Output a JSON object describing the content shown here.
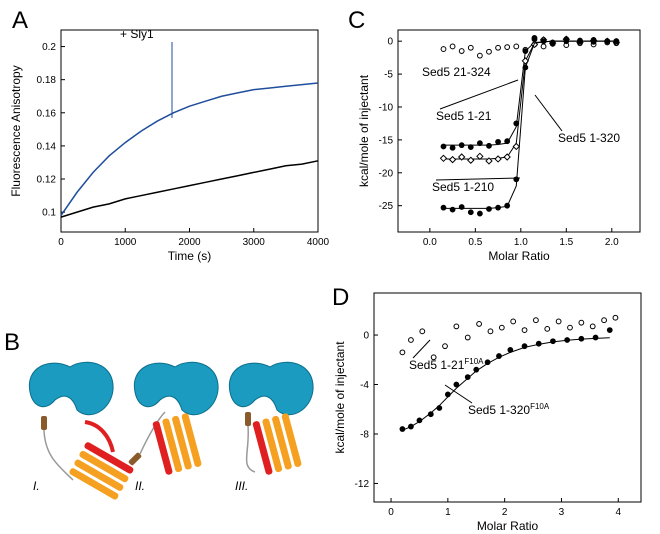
{
  "chart_data": [
    {
      "type": "line",
      "panel": "A",
      "xlabel": "Time (s)",
      "ylabel": "Fluorescence Anisotropy",
      "xlim": [
        0,
        4000
      ],
      "ylim": [
        0.088,
        0.21
      ],
      "xticks": [
        0,
        1000,
        2000,
        3000,
        4000
      ],
      "yticks": [
        0.1,
        0.12,
        0.14,
        0.16,
        0.18,
        0.2
      ],
      "x": [
        0,
        250,
        500,
        750,
        1000,
        1250,
        1500,
        1750,
        2000,
        2250,
        2500,
        2750,
        3000,
        3250,
        3500,
        3750,
        4000
      ],
      "series": [
        {
          "name": "+ Sly1",
          "color": "#1f4e9c",
          "values": [
            0.098,
            0.112,
            0.124,
            0.134,
            0.142,
            0.149,
            0.155,
            0.16,
            0.164,
            0.167,
            0.17,
            0.172,
            0.174,
            0.175,
            0.176,
            0.177,
            0.178
          ]
        },
        {
          "color": "#000000",
          "values": [
            0.097,
            0.1,
            0.103,
            0.105,
            0.108,
            0.11,
            0.112,
            0.114,
            0.116,
            0.118,
            0.12,
            0.122,
            0.124,
            0.126,
            0.128,
            0.129,
            0.131
          ]
        }
      ]
    },
    {
      "type": "scatter",
      "panel": "C",
      "xlabel": "Molar Ratio",
      "ylabel": "kcal/mole of injectant",
      "xlim": [
        -0.35,
        2.31
      ],
      "ylim": [
        -29,
        1.7
      ],
      "xticks": [
        {
          "value": 0,
          "label": "0.0"
        },
        0.5,
        {
          "value": 1,
          "label": "1.0"
        },
        1.5,
        {
          "value": 2,
          "label": "2.0"
        }
      ],
      "yticks": [
        0,
        -5,
        -10,
        -15,
        -20,
        -25
      ],
      "series": [
        {
          "name": "Sed5 21-324",
          "marker": "open-circle",
          "x": [
            0.15,
            0.25,
            0.35,
            0.45,
            0.55,
            0.65,
            0.75,
            0.85,
            0.95,
            1.05,
            1.15,
            1.25,
            1.35,
            1.5,
            1.65,
            1.8,
            1.95,
            2.05
          ],
          "values": [
            -1.2,
            -0.8,
            -1.5,
            -1.0,
            -2.2,
            -1.6,
            -1.0,
            -0.9,
            -0.8,
            -1.3,
            -0.5,
            -0.8,
            -0.4,
            -0.6,
            -0.3,
            -0.5,
            -0.2,
            -0.3
          ]
        },
        {
          "name": "Sed5 1-320",
          "marker": "filled-circle",
          "x": [
            0.15,
            0.25,
            0.35,
            0.45,
            0.55,
            0.65,
            0.75,
            0.85,
            0.95,
            1.05,
            1.15,
            1.25,
            1.35,
            1.5,
            1.65,
            1.8,
            1.95,
            2.05
          ],
          "values": [
            -16,
            -16.2,
            -15.8,
            -16.1,
            -15.5,
            -15.9,
            -15.3,
            -15.2,
            -12.5,
            -1.5,
            0.3,
            0.2,
            -0.2,
            0,
            0.1,
            -0.1,
            0,
            0
          ],
          "fit": [
            -15.8,
            -15.8,
            -15.8,
            -15.8,
            -15.8,
            -15.8,
            -15.7,
            -15.5,
            -13,
            -1.5,
            -0.2,
            -0.1,
            0,
            0,
            0,
            0,
            0,
            0
          ]
        },
        {
          "name": "Sed5 1-21",
          "marker": "open-diamond",
          "x": [
            0.15,
            0.25,
            0.35,
            0.45,
            0.55,
            0.65,
            0.75,
            0.85,
            0.95,
            1.05,
            1.15,
            1.25,
            1.35,
            1.5,
            1.65,
            1.8,
            1.95,
            2.05
          ],
          "values": [
            -17.8,
            -18,
            -17.6,
            -18.1,
            -17.5,
            -18.2,
            -17.9,
            -17.6,
            -16,
            -3,
            -0.5,
            0.2,
            -0.3,
            0.3,
            -0.2,
            0.1,
            0,
            -0.2
          ],
          "fit": [
            -17.9,
            -17.9,
            -17.9,
            -17.9,
            -17.9,
            -17.9,
            -17.8,
            -17.6,
            -15.5,
            -3,
            -0.3,
            -0.1,
            0,
            0,
            0,
            0,
            0,
            0
          ]
        },
        {
          "name": "Sed5 1-210",
          "marker": "filled-circle",
          "x": [
            0.15,
            0.25,
            0.35,
            0.45,
            0.55,
            0.65,
            0.75,
            0.85,
            0.95,
            1.05,
            1.15,
            1.25,
            1.35,
            1.5,
            1.65,
            1.8,
            1.95,
            2.05
          ],
          "values": [
            -25.3,
            -25.6,
            -25.2,
            -26,
            -26.2,
            -25.5,
            -25.3,
            -25,
            -21,
            -4,
            0.5,
            0,
            -0.2,
            0.3,
            0,
            0.2,
            0,
            0
          ],
          "fit": [
            -25.4,
            -25.4,
            -25.4,
            -25.4,
            -25.4,
            -25.4,
            -25.3,
            -25.1,
            -22,
            -4,
            -0.3,
            -0.1,
            0,
            0,
            0,
            0,
            0,
            0
          ]
        }
      ]
    },
    {
      "type": "scatter",
      "panel": "D",
      "xlabel": "Molar Ratio",
      "ylabel": "kcal/mole of injectant",
      "xlim": [
        -0.3,
        4.4
      ],
      "ylim": [
        -13.5,
        3.4
      ],
      "xticks": [
        0,
        1,
        2,
        3,
        4
      ],
      "yticks": [
        0,
        -4,
        -8,
        -12
      ],
      "series": [
        {
          "name": "Sed5 1-21",
          "name_superscript": "F10A",
          "marker": "open-circle",
          "x": [
            0.2,
            0.35,
            0.55,
            0.75,
            0.95,
            1.15,
            1.35,
            1.55,
            1.75,
            1.95,
            2.15,
            2.35,
            2.55,
            2.75,
            2.95,
            3.15,
            3.35,
            3.55,
            3.75,
            3.95
          ],
          "values": [
            -1.4,
            -0.4,
            0.3,
            -1.8,
            -0.9,
            0.7,
            -0.2,
            0.9,
            0.3,
            0.6,
            1.1,
            0.4,
            1.2,
            0.5,
            1.1,
            0.6,
            1.0,
            0.7,
            1.2,
            1.4
          ]
        },
        {
          "name": "Sed5 1-320",
          "name_superscript": "F10A",
          "marker": "filled-circle",
          "x": [
            0.2,
            0.35,
            0.5,
            0.7,
            0.85,
            1.0,
            1.15,
            1.35,
            1.5,
            1.7,
            1.9,
            2.1,
            2.35,
            2.6,
            2.85,
            3.1,
            3.35,
            3.6,
            3.85
          ],
          "values": [
            -7.6,
            -7.4,
            -6.9,
            -6.4,
            -5.9,
            -4.8,
            -4.0,
            -3.4,
            -2.8,
            -2.2,
            -1.7,
            -1.2,
            -0.9,
            -0.7,
            -0.5,
            -0.4,
            -0.3,
            -0.2,
            0.4
          ],
          "fit": [
            -7.7,
            -7.4,
            -7.0,
            -6.3,
            -5.7,
            -5.0,
            -4.3,
            -3.5,
            -2.9,
            -2.3,
            -1.8,
            -1.4,
            -1.0,
            -0.75,
            -0.55,
            -0.42,
            -0.33,
            -0.27,
            -0.22
          ]
        }
      ]
    }
  ],
  "diagram": {
    "panel": "B",
    "labels": [
      "I.",
      "II.",
      "III."
    ]
  }
}
